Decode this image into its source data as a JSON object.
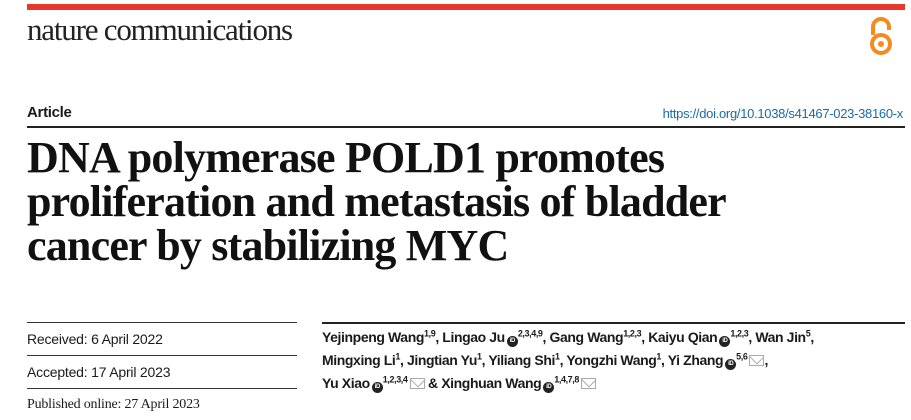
{
  "journal": "nature communications",
  "article_type": "Article",
  "doi": "https://doi.org/10.1038/s41467-023-38160-x",
  "title_lines": [
    "DNA polymerase POLD1 promotes",
    "proliferation and metastasis of bladder",
    "cancer by stabilizing MYC"
  ],
  "received": "Received: 6 April 2022",
  "accepted": "Accepted: 17 April 2023",
  "published": "Published online: 27 April 2023",
  "authors": [
    {
      "name": "Yejinpeng Wang",
      "sup": "1,9",
      "orcid": false,
      "email": false,
      "sep": ", "
    },
    {
      "name": "Lingao Ju",
      "sup": "2,3,4,9",
      "orcid": true,
      "email": false,
      "sep": ", "
    },
    {
      "name": "Gang Wang",
      "sup": "1,2,3",
      "orcid": false,
      "email": false,
      "sep": ", "
    },
    {
      "name": "Kaiyu Qian",
      "sup": "1,2,3",
      "orcid": true,
      "email": false,
      "sep": ", "
    },
    {
      "name": "Wan Jin",
      "sup": "5",
      "orcid": false,
      "email": false,
      "sep": ","
    },
    {
      "name": "Mingxing Li",
      "sup": "1",
      "orcid": false,
      "email": false,
      "sep": ", ",
      "br": true
    },
    {
      "name": "Jingtian Yu",
      "sup": "1",
      "orcid": false,
      "email": false,
      "sep": ", "
    },
    {
      "name": "Yiliang Shi",
      "sup": "1",
      "orcid": false,
      "email": false,
      "sep": ", "
    },
    {
      "name": "Yongzhi Wang",
      "sup": "1",
      "orcid": false,
      "email": false,
      "sep": ", "
    },
    {
      "name": "Yi Zhang",
      "sup": "5,6",
      "orcid": true,
      "email": true,
      "sep": ","
    },
    {
      "name": "Yu Xiao",
      "sup": "1,2,3,4",
      "orcid": true,
      "email": true,
      "sep": " & ",
      "br": true
    },
    {
      "name": "Xinghuan Wang",
      "sup": "1,4,7,8",
      "orcid": true,
      "email": true,
      "sep": ""
    }
  ],
  "orcid_label": "iD",
  "colors": {
    "accent": "#e8382c",
    "oa": "#f58a1f",
    "link": "#1a6aa8"
  }
}
